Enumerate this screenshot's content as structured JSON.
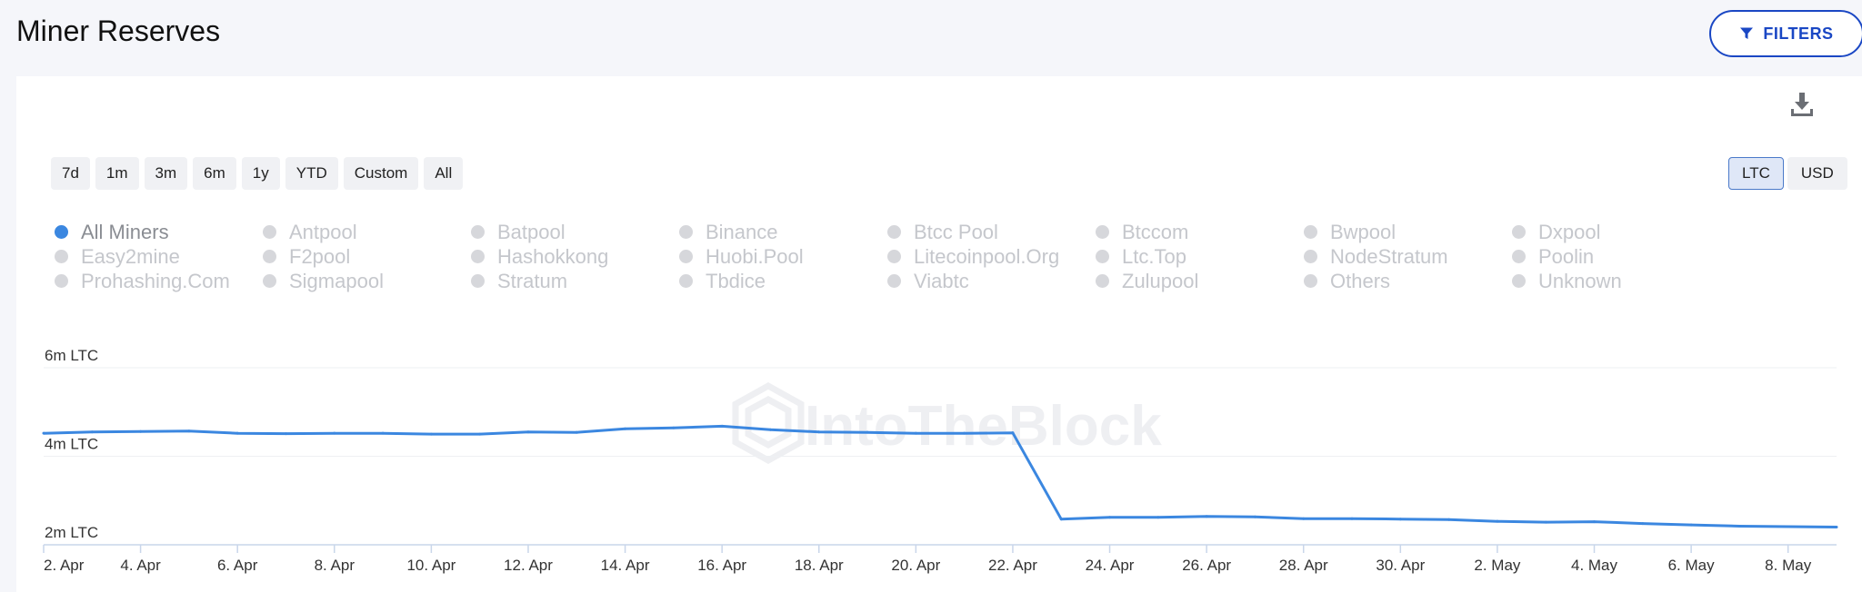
{
  "page": {
    "title": "Miner Reserves",
    "filters_label": "FILTERS"
  },
  "toolbar": {
    "ranges": [
      "7d",
      "1m",
      "3m",
      "6m",
      "1y",
      "YTD",
      "Custom",
      "All"
    ],
    "units": [
      "LTC",
      "USD"
    ],
    "active_unit": "LTC"
  },
  "legend": [
    {
      "label": "All Miners",
      "on": true
    },
    {
      "label": "Antpool"
    },
    {
      "label": "Batpool"
    },
    {
      "label": "Binance"
    },
    {
      "label": "Btcc Pool"
    },
    {
      "label": "Btccom"
    },
    {
      "label": "Bwpool"
    },
    {
      "label": "Dxpool"
    },
    {
      "label": "Easy2mine"
    },
    {
      "label": "F2pool"
    },
    {
      "label": "Hashokkong"
    },
    {
      "label": "Huobi.Pool"
    },
    {
      "label": "Litecoinpool.Org"
    },
    {
      "label": "Ltc.Top"
    },
    {
      "label": "NodeStratum"
    },
    {
      "label": "Poolin"
    },
    {
      "label": "Prohashing.Com"
    },
    {
      "label": "Sigmapool"
    },
    {
      "label": "Stratum"
    },
    {
      "label": "Tbdice"
    },
    {
      "label": "Viabtc"
    },
    {
      "label": "Zulupool"
    },
    {
      "label": "Others"
    },
    {
      "label": "Unknown"
    }
  ],
  "watermark": "IntoTheBlock",
  "colors": {
    "line": "#3b87e0",
    "accent": "#1a47c4"
  },
  "chart_data": {
    "type": "line",
    "x": [
      "2. Apr",
      "3. Apr",
      "4. Apr",
      "5. Apr",
      "6. Apr",
      "7. Apr",
      "8. Apr",
      "9. Apr",
      "10. Apr",
      "11. Apr",
      "12. Apr",
      "13. Apr",
      "14. Apr",
      "15. Apr",
      "16. Apr",
      "17. Apr",
      "18. Apr",
      "19. Apr",
      "20. Apr",
      "21. Apr",
      "22. Apr",
      "23. Apr",
      "24. Apr",
      "25. Apr",
      "26. Apr",
      "27. Apr",
      "28. Apr",
      "29. Apr",
      "30. Apr",
      "1. May",
      "2. May",
      "3. May",
      "4. May",
      "5. May",
      "6. May",
      "7. May",
      "8. May",
      "9. May"
    ],
    "series": [
      {
        "name": "All Miners",
        "values": [
          4.52,
          4.55,
          4.56,
          4.57,
          4.52,
          4.51,
          4.52,
          4.52,
          4.5,
          4.5,
          4.55,
          4.54,
          4.62,
          4.64,
          4.68,
          4.6,
          4.55,
          4.54,
          4.52,
          4.52,
          4.53,
          2.58,
          2.62,
          2.62,
          2.64,
          2.63,
          2.59,
          2.59,
          2.58,
          2.57,
          2.53,
          2.51,
          2.52,
          2.48,
          2.45,
          2.42,
          2.41,
          2.4
        ]
      }
    ],
    "y_ticks": [
      "2m LTC",
      "4m LTC",
      "6m LTC"
    ],
    "x_ticks": [
      "2. Apr",
      "4. Apr",
      "6. Apr",
      "8. Apr",
      "10. Apr",
      "12. Apr",
      "14. Apr",
      "16. Apr",
      "18. Apr",
      "20. Apr",
      "22. Apr",
      "24. Apr",
      "26. Apr",
      "28. Apr",
      "30. Apr",
      "2. May",
      "4. May",
      "6. May",
      "8. May"
    ],
    "ylim": [
      2,
      6
    ],
    "grid": true
  }
}
